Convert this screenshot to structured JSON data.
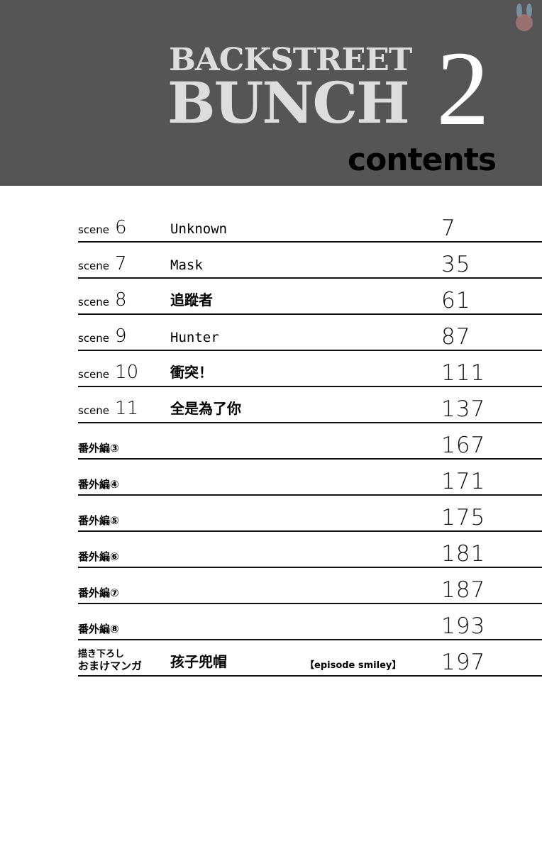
{
  "header": {
    "title_line1": "BACKSTREET",
    "title_line2": "BUNCH",
    "volume": "2",
    "subtitle": "contents"
  },
  "rows": [
    {
      "label": "scene",
      "num": "6",
      "title": "Unknown",
      "page": "7",
      "jp": false
    },
    {
      "label": "scene",
      "num": "7",
      "title": "Mask",
      "page": "35",
      "jp": false
    },
    {
      "label": "scene",
      "num": "8",
      "title": "追蹤者",
      "page": "61",
      "jp": true
    },
    {
      "label": "scene",
      "num": "9",
      "title": "Hunter",
      "page": "87",
      "jp": false
    },
    {
      "label": "scene",
      "num": "10",
      "title": "衝突！",
      "page": "111",
      "jp": true
    },
    {
      "label": "scene",
      "num": "11",
      "title": "全是為了你",
      "page": "137",
      "jp": true
    },
    {
      "label": "番外編③",
      "page": "167"
    },
    {
      "label": "番外編④",
      "page": "171"
    },
    {
      "label": "番外編⑤",
      "page": "175"
    },
    {
      "label": "番外編⑥",
      "page": "181"
    },
    {
      "label": "番外編⑦",
      "page": "187"
    },
    {
      "label": "番外編⑧",
      "page": "193"
    }
  ],
  "bonus": {
    "label_line1": "描き下ろし",
    "label_line2": "おまけマンガ",
    "title": "孩子兜帽",
    "extra": "【episode smiley】",
    "page": "197"
  }
}
